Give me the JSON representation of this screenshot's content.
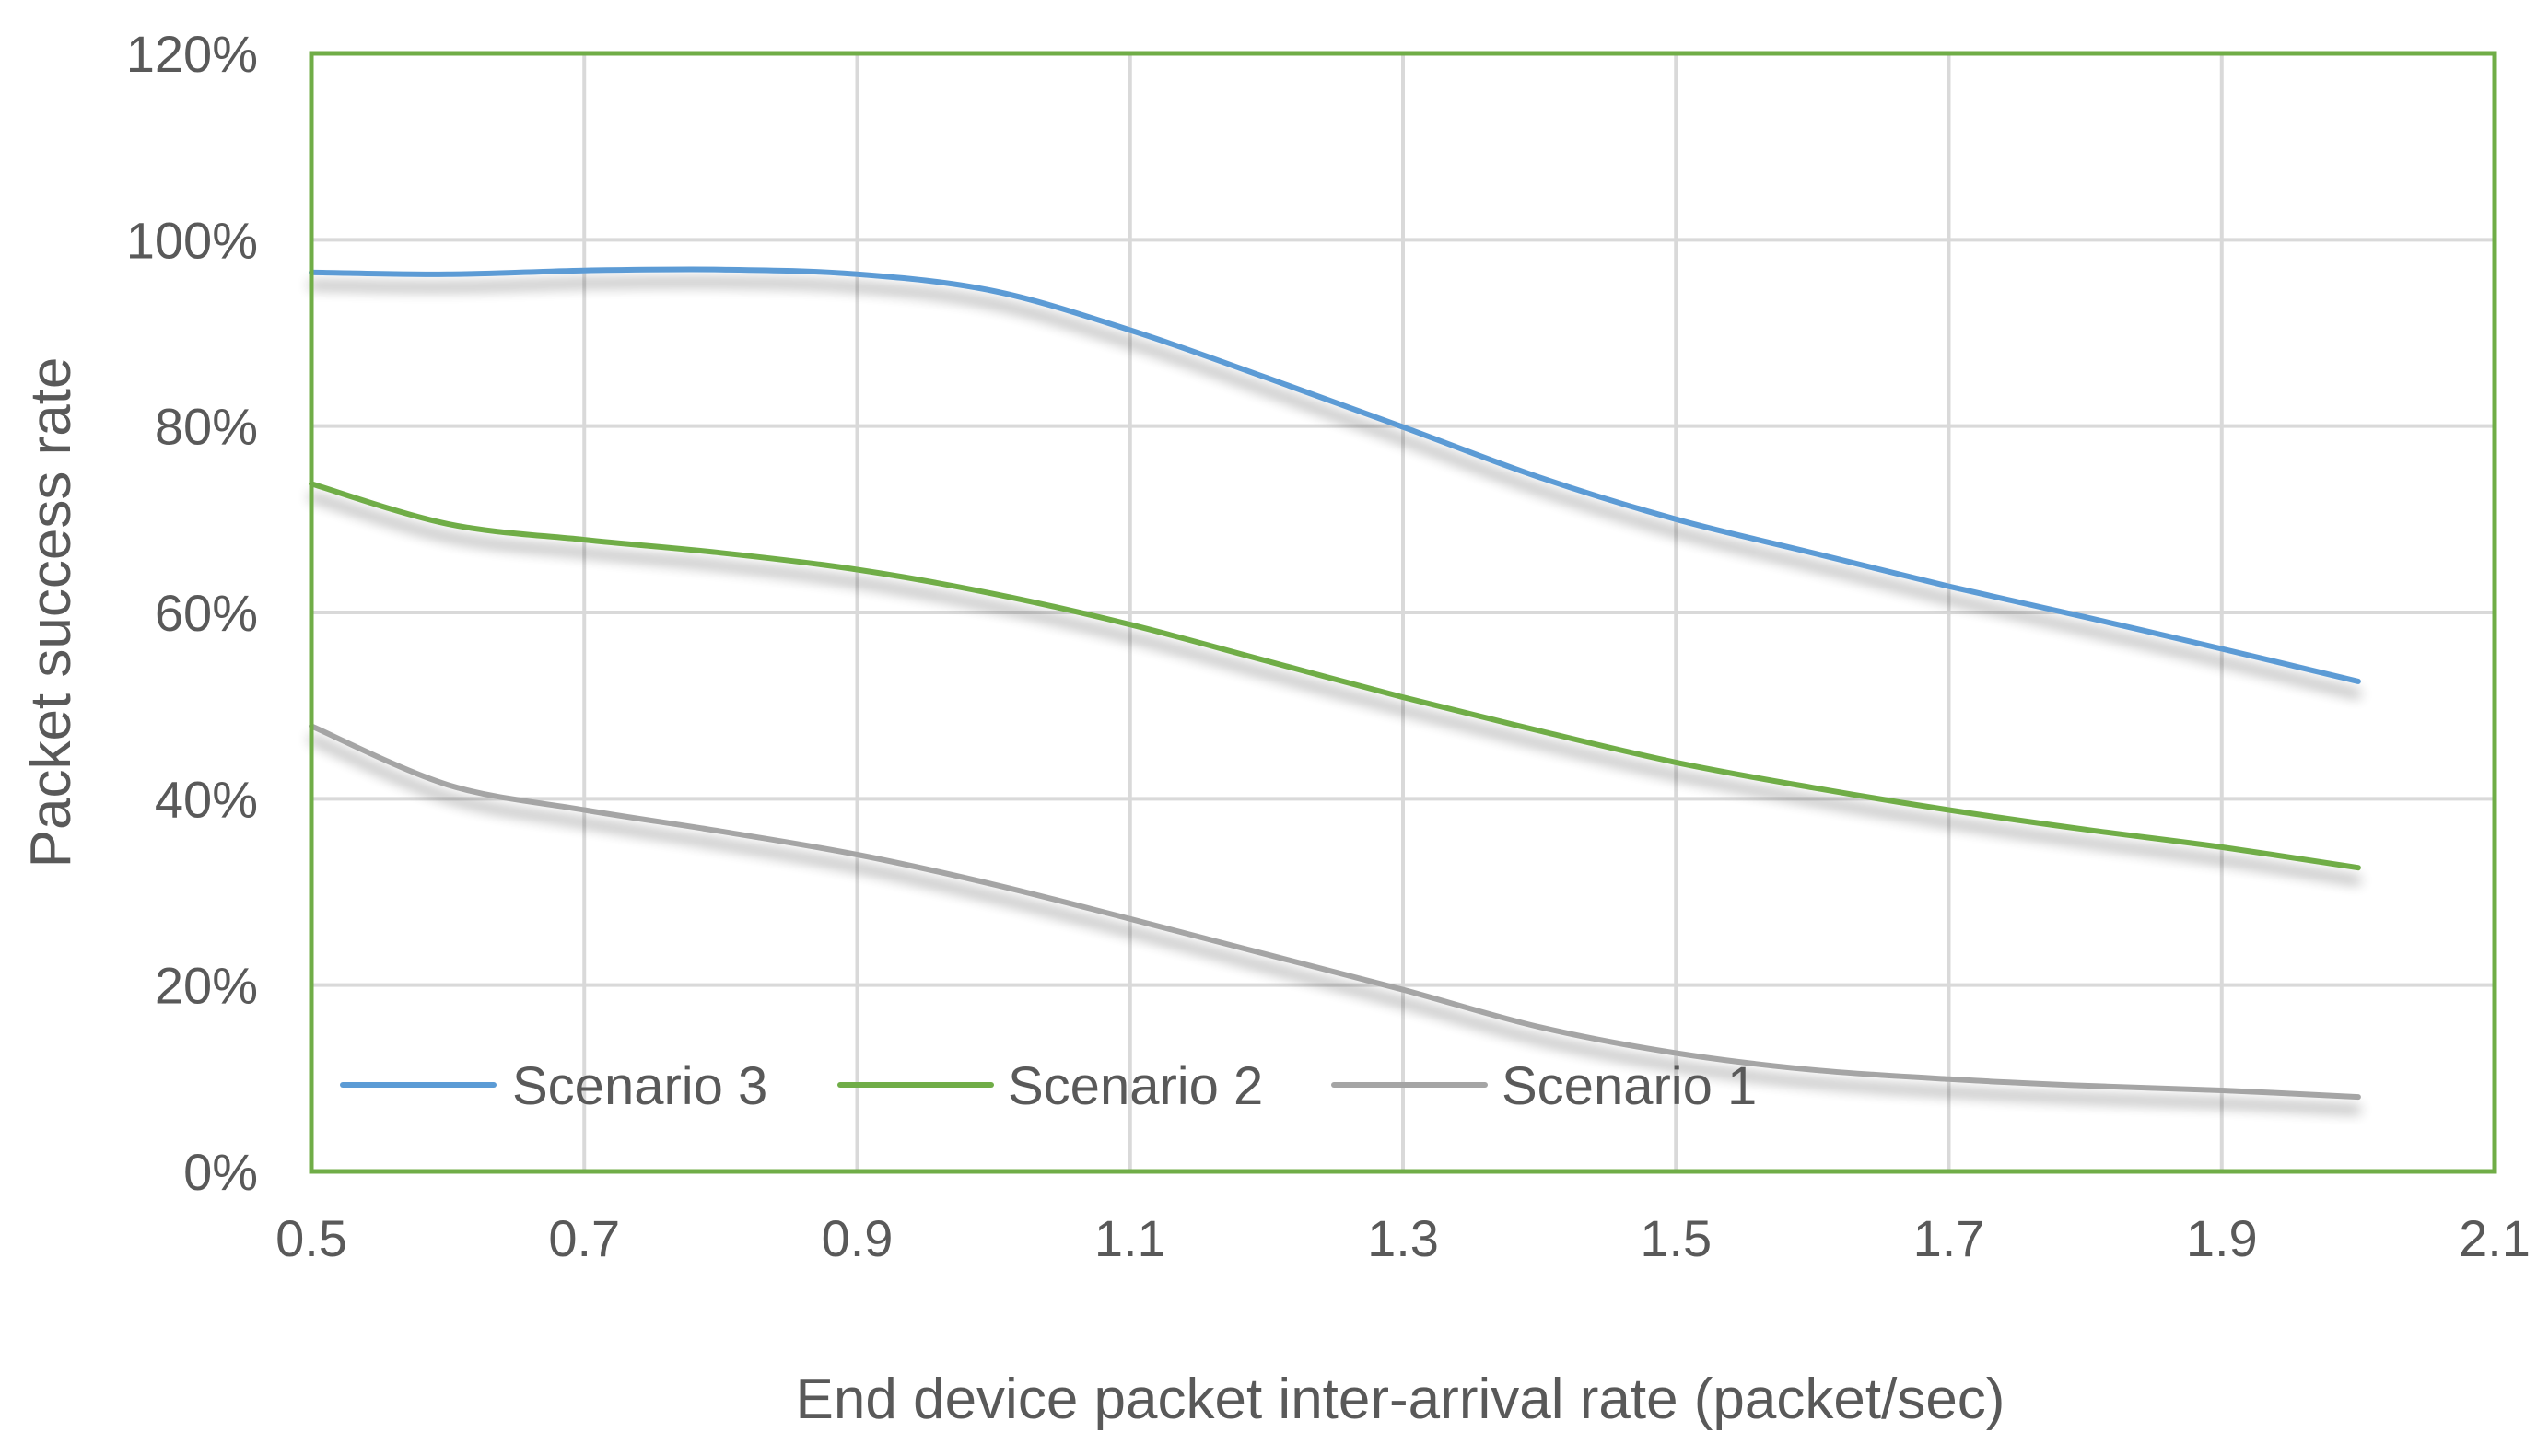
{
  "chart_data": {
    "type": "line",
    "title": "",
    "xlabel": "End device packet inter-arrival rate (packet/sec)",
    "ylabel": "Packet success rate",
    "xlim": [
      0.5,
      2.1
    ],
    "ylim": [
      0,
      120
    ],
    "x_ticks": [
      0.5,
      0.7,
      0.9,
      1.1,
      1.3,
      1.5,
      1.7,
      1.9,
      2.1
    ],
    "x_tick_labels": [
      "0.5",
      "0.7",
      "0.9",
      "1.1",
      "1.3",
      "1.5",
      "1.7",
      "1.9",
      "2.1"
    ],
    "y_ticks": [
      0,
      20,
      40,
      60,
      80,
      100,
      120
    ],
    "y_tick_labels": [
      "0%",
      "20%",
      "40%",
      "60%",
      "80%",
      "100%",
      "120%"
    ],
    "grid": true,
    "legend_position": "bottom-left, inside plot",
    "plot_border_color": "#70AD47",
    "series": [
      {
        "name": "Scenario 3",
        "color": "#5B9BD5",
        "x": [
          0.5,
          0.6,
          0.7,
          0.8,
          0.9,
          1.0,
          1.1,
          1.2,
          1.3,
          1.4,
          1.5,
          1.6,
          1.7,
          1.8,
          1.9,
          2.0
        ],
        "y": [
          96.5,
          96.3,
          96.7,
          96.8,
          96.3,
          94.5,
          90.3,
          85.2,
          79.9,
          74.5,
          70.0,
          66.4,
          62.8,
          59.5,
          56.1,
          52.6
        ]
      },
      {
        "name": "Scenario 2",
        "color": "#70AD47",
        "x": [
          0.5,
          0.6,
          0.7,
          0.8,
          0.9,
          1.0,
          1.1,
          1.2,
          1.3,
          1.4,
          1.5,
          1.6,
          1.7,
          1.8,
          1.9,
          2.0
        ],
        "y": [
          73.8,
          69.5,
          67.8,
          66.4,
          64.6,
          62.0,
          58.7,
          54.8,
          50.9,
          47.3,
          43.9,
          41.2,
          38.8,
          36.7,
          34.8,
          32.6
        ]
      },
      {
        "name": "Scenario 1",
        "color": "#A5A5A5",
        "x": [
          0.5,
          0.6,
          0.7,
          0.8,
          0.9,
          1.0,
          1.1,
          1.2,
          1.3,
          1.4,
          1.5,
          1.6,
          1.7,
          1.8,
          1.9,
          2.0
        ],
        "y": [
          47.8,
          41.5,
          38.8,
          36.5,
          34.0,
          30.8,
          27.1,
          23.3,
          19.5,
          15.5,
          12.7,
          10.9,
          9.9,
          9.2,
          8.7,
          8.0
        ]
      }
    ]
  }
}
